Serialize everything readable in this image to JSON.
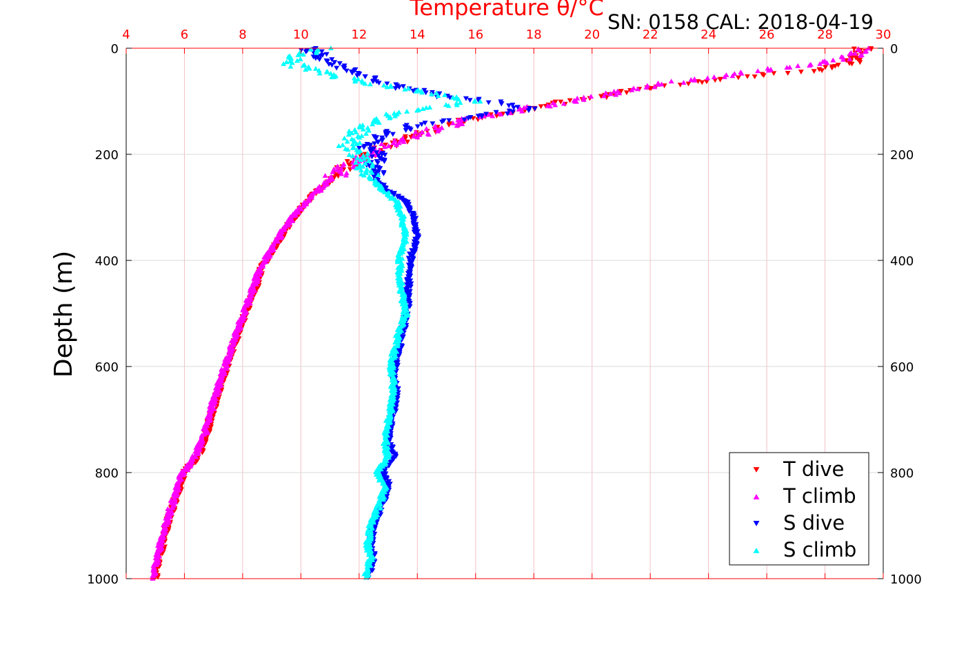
{
  "chart_data": {
    "type": "scatter",
    "title": "Temperature θ/°C",
    "annotation": "SN: 0158  CAL: 2018-04-19",
    "ylabel": "Depth (m)",
    "xlim": [
      4,
      30
    ],
    "ylim": [
      1000,
      0
    ],
    "x_ticks": [
      "4",
      "6",
      "8",
      "10",
      "12",
      "14",
      "16",
      "18",
      "20",
      "22",
      "24",
      "26",
      "28",
      "30"
    ],
    "y_ticks": [
      "0",
      "200",
      "400",
      "600",
      "800",
      "1000"
    ],
    "grid": true,
    "legend_position": "bottom-right",
    "legend": [
      "T dive",
      "T climb",
      "S dive",
      "S climb"
    ],
    "colors": {
      "top_axis": "#ff0000",
      "t_dive": "#ff0000",
      "t_climb": "#ff00ff",
      "s_dive": "#0000ff",
      "s_climb": "#00ffff",
      "vgrid": "#f4c0c8",
      "hgrid": "#d8d8d8"
    },
    "series": [
      {
        "name": "T dive",
        "marker": "triangle-down",
        "color": "#ff0000",
        "profile": [
          [
            29.3,
            0
          ],
          [
            29.3,
            10
          ],
          [
            29.0,
            25
          ],
          [
            28.0,
            40
          ],
          [
            26.0,
            50
          ],
          [
            24.0,
            62
          ],
          [
            22.0,
            75
          ],
          [
            20.5,
            90
          ],
          [
            19.0,
            103
          ],
          [
            17.5,
            118
          ],
          [
            16.0,
            132
          ],
          [
            15.0,
            148
          ],
          [
            14.0,
            165
          ],
          [
            13.0,
            185
          ],
          [
            12.2,
            205
          ],
          [
            11.6,
            225
          ],
          [
            11.0,
            250
          ],
          [
            10.4,
            280
          ],
          [
            9.9,
            310
          ],
          [
            9.5,
            340
          ],
          [
            9.1,
            375
          ],
          [
            8.7,
            410
          ],
          [
            8.4,
            460
          ],
          [
            8.0,
            515
          ],
          [
            7.7,
            560
          ],
          [
            7.4,
            610
          ],
          [
            7.1,
            660
          ],
          [
            6.8,
            720
          ],
          [
            6.5,
            770
          ],
          [
            6.0,
            800
          ],
          [
            5.7,
            850
          ],
          [
            5.4,
            900
          ],
          [
            5.2,
            950
          ],
          [
            5.0,
            1000
          ]
        ]
      },
      {
        "name": "T climb",
        "marker": "triangle-up",
        "color": "#ff00ff",
        "profile": [
          [
            29.2,
            0
          ],
          [
            29.2,
            8
          ],
          [
            28.8,
            18
          ],
          [
            27.5,
            30
          ],
          [
            25.8,
            42
          ],
          [
            24.0,
            55
          ],
          [
            22.0,
            70
          ],
          [
            20.5,
            88
          ],
          [
            19.0,
            102
          ],
          [
            17.5,
            116
          ],
          [
            16.0,
            130
          ],
          [
            15.0,
            146
          ],
          [
            14.0,
            163
          ],
          [
            13.0,
            183
          ],
          [
            12.2,
            203
          ],
          [
            11.5,
            225
          ],
          [
            10.9,
            252
          ],
          [
            10.3,
            282
          ],
          [
            9.8,
            312
          ],
          [
            9.4,
            342
          ],
          [
            9.0,
            378
          ],
          [
            8.6,
            412
          ],
          [
            8.3,
            462
          ],
          [
            7.9,
            518
          ],
          [
            7.6,
            565
          ],
          [
            7.3,
            615
          ],
          [
            7.0,
            665
          ],
          [
            6.7,
            725
          ],
          [
            6.3,
            775
          ],
          [
            5.9,
            805
          ],
          [
            5.6,
            855
          ],
          [
            5.3,
            905
          ],
          [
            5.1,
            955
          ],
          [
            4.9,
            1000
          ]
        ]
      },
      {
        "name": "S dive",
        "marker": "triangle-down",
        "color": "#0000ff",
        "profile": [
          [
            10.2,
            0
          ],
          [
            10.6,
            10
          ],
          [
            11.0,
            28
          ],
          [
            11.8,
            45
          ],
          [
            12.5,
            58
          ],
          [
            13.5,
            75
          ],
          [
            14.8,
            90
          ],
          [
            16.5,
            100
          ],
          [
            17.8,
            115
          ],
          [
            16.0,
            130
          ],
          [
            14.0,
            145
          ],
          [
            13.0,
            160
          ],
          [
            12.5,
            175
          ],
          [
            12.2,
            190
          ],
          [
            12.8,
            205
          ],
          [
            12.5,
            225
          ],
          [
            12.6,
            250
          ],
          [
            13.0,
            268
          ],
          [
            13.6,
            290
          ],
          [
            13.9,
            320
          ],
          [
            14.0,
            355
          ],
          [
            13.8,
            390
          ],
          [
            13.7,
            430
          ],
          [
            13.7,
            470
          ],
          [
            13.6,
            510
          ],
          [
            13.4,
            560
          ],
          [
            13.2,
            610
          ],
          [
            13.3,
            655
          ],
          [
            13.1,
            700
          ],
          [
            13.0,
            740
          ],
          [
            13.2,
            770
          ],
          [
            12.8,
            800
          ],
          [
            13.0,
            825
          ],
          [
            12.8,
            860
          ],
          [
            12.5,
            900
          ],
          [
            12.4,
            935
          ],
          [
            12.5,
            960
          ],
          [
            12.3,
            1000
          ]
        ]
      },
      {
        "name": "S climb",
        "marker": "triangle-up",
        "color": "#00ffff",
        "profile": [
          [
            10.7,
            0
          ],
          [
            10.1,
            10
          ],
          [
            9.5,
            25
          ],
          [
            10.3,
            40
          ],
          [
            11.5,
            55
          ],
          [
            12.8,
            70
          ],
          [
            14.5,
            85
          ],
          [
            16.0,
            100
          ],
          [
            14.5,
            112
          ],
          [
            13.0,
            125
          ],
          [
            12.5,
            140
          ],
          [
            12.0,
            155
          ],
          [
            11.8,
            170
          ],
          [
            11.6,
            185
          ],
          [
            12.0,
            200
          ],
          [
            12.2,
            225
          ],
          [
            12.5,
            250
          ],
          [
            12.9,
            270
          ],
          [
            13.3,
            290
          ],
          [
            13.5,
            320
          ],
          [
            13.6,
            355
          ],
          [
            13.4,
            390
          ],
          [
            13.4,
            430
          ],
          [
            13.5,
            470
          ],
          [
            13.6,
            500
          ],
          [
            13.3,
            545
          ],
          [
            13.1,
            600
          ],
          [
            13.2,
            650
          ],
          [
            13.0,
            700
          ],
          [
            12.9,
            745
          ],
          [
            13.0,
            770
          ],
          [
            12.6,
            800
          ],
          [
            12.9,
            825
          ],
          [
            12.7,
            860
          ],
          [
            12.4,
            900
          ],
          [
            12.3,
            935
          ],
          [
            12.4,
            960
          ],
          [
            12.2,
            1000
          ]
        ]
      }
    ]
  }
}
